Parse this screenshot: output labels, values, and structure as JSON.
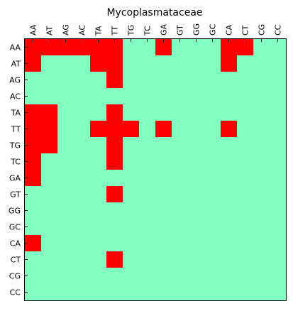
{
  "chart_data": {
    "type": "heatmap",
    "title": "Mycoplasmataceae",
    "x_labels": [
      "AA",
      "AT",
      "AG",
      "AC",
      "TA",
      "TT",
      "TG",
      "TC",
      "GA",
      "GT",
      "GG",
      "GC",
      "CA",
      "CT",
      "CG",
      "CC"
    ],
    "y_labels": [
      "AA",
      "AT",
      "AG",
      "AC",
      "TA",
      "TT",
      "TG",
      "TC",
      "GA",
      "GT",
      "GG",
      "GC",
      "CA",
      "CT",
      "CG",
      "CC"
    ],
    "value_colors": {
      "0": "#80ffc0",
      "1": "#ff0000"
    },
    "grid": false,
    "matrix": [
      [
        1,
        1,
        1,
        1,
        1,
        1,
        0,
        0,
        1,
        0,
        0,
        0,
        1,
        1,
        0,
        0
      ],
      [
        1,
        0,
        0,
        0,
        1,
        1,
        0,
        0,
        0,
        0,
        0,
        0,
        1,
        0,
        0,
        0
      ],
      [
        0,
        0,
        0,
        0,
        0,
        1,
        0,
        0,
        0,
        0,
        0,
        0,
        0,
        0,
        0,
        0
      ],
      [
        0,
        0,
        0,
        0,
        0,
        0,
        0,
        0,
        0,
        0,
        0,
        0,
        0,
        0,
        0,
        0
      ],
      [
        1,
        1,
        0,
        0,
        0,
        1,
        0,
        0,
        0,
        0,
        0,
        0,
        0,
        0,
        0,
        0
      ],
      [
        1,
        1,
        0,
        0,
        1,
        1,
        1,
        0,
        1,
        0,
        0,
        0,
        1,
        0,
        0,
        0
      ],
      [
        1,
        1,
        0,
        0,
        0,
        1,
        0,
        0,
        0,
        0,
        0,
        0,
        0,
        0,
        0,
        0
      ],
      [
        1,
        0,
        0,
        0,
        0,
        1,
        0,
        0,
        0,
        0,
        0,
        0,
        0,
        0,
        0,
        0
      ],
      [
        1,
        0,
        0,
        0,
        0,
        0,
        0,
        0,
        0,
        0,
        0,
        0,
        0,
        0,
        0,
        0
      ],
      [
        0,
        0,
        0,
        0,
        0,
        1,
        0,
        0,
        0,
        0,
        0,
        0,
        0,
        0,
        0,
        0
      ],
      [
        0,
        0,
        0,
        0,
        0,
        0,
        0,
        0,
        0,
        0,
        0,
        0,
        0,
        0,
        0,
        0
      ],
      [
        0,
        0,
        0,
        0,
        0,
        0,
        0,
        0,
        0,
        0,
        0,
        0,
        0,
        0,
        0,
        0
      ],
      [
        1,
        0,
        0,
        0,
        0,
        0,
        0,
        0,
        0,
        0,
        0,
        0,
        0,
        0,
        0,
        0
      ],
      [
        0,
        0,
        0,
        0,
        0,
        1,
        0,
        0,
        0,
        0,
        0,
        0,
        0,
        0,
        0,
        0
      ],
      [
        0,
        0,
        0,
        0,
        0,
        0,
        0,
        0,
        0,
        0,
        0,
        0,
        0,
        0,
        0,
        0
      ],
      [
        0,
        0,
        0,
        0,
        0,
        0,
        0,
        0,
        0,
        0,
        0,
        0,
        0,
        0,
        0,
        0
      ]
    ]
  }
}
